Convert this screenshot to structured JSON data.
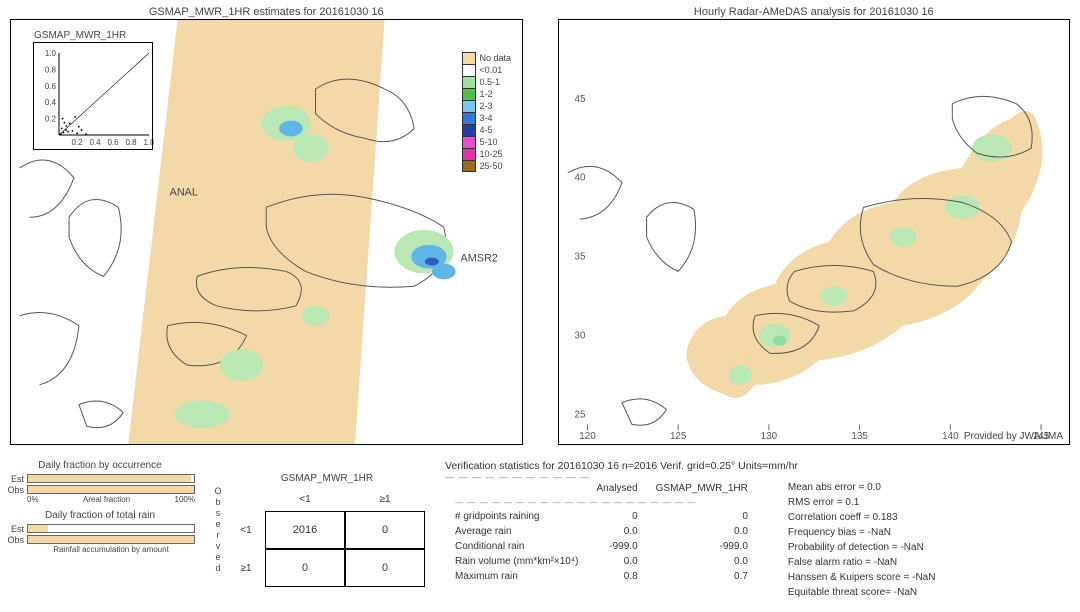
{
  "maps": {
    "left": {
      "title": "GSMAP_MWR_1HR estimates for 20161030 16",
      "swath_color": "#f3d9a8",
      "coast_color": "#555",
      "rain_color1": "#b9e8b5",
      "rain_color2": "#5fb6e6",
      "rain_color3": "#2d5fc2",
      "labels": {
        "anal": "ANAL",
        "amsr2": "AMSR2"
      },
      "inset": {
        "title": "GSMAP_MWR_1HR",
        "xlim": [
          0,
          1.0
        ],
        "ylim": [
          0,
          1.0
        ],
        "xticks": [
          "0.2",
          "0.4",
          "0.6",
          "0.8",
          "1.0"
        ],
        "yticks": [
          "0.2",
          "0.4",
          "0.6",
          "0.8",
          "1.0"
        ],
        "points": [
          [
            0.02,
            0.01
          ],
          [
            0.05,
            0.03
          ],
          [
            0.03,
            0.08
          ],
          [
            0.1,
            0.04
          ],
          [
            0.08,
            0.11
          ],
          [
            0.15,
            0.05
          ],
          [
            0.12,
            0.14
          ],
          [
            0.2,
            0.02
          ],
          [
            0.04,
            0.2
          ],
          [
            0.25,
            0.06
          ],
          [
            0.18,
            0.22
          ],
          [
            0.08,
            0.06
          ],
          [
            0.3,
            0.01
          ],
          [
            0.01,
            0.01
          ],
          [
            0.06,
            0.15
          ],
          [
            0.22,
            0.1
          ]
        ],
        "point_color": "#000"
      }
    },
    "right": {
      "title": "Hourly Radar-AMeDAS analysis for 20161030 16",
      "coverage_color": "#f3d9a8",
      "coast_color": "#555",
      "rain_color1": "#b9e8b5",
      "rain_color2": "#8fd9a6",
      "xticks": [
        "120",
        "125",
        "130",
        "135",
        "140",
        "145"
      ],
      "yticks": [
        "25",
        "30",
        "35",
        "40",
        "45"
      ],
      "tick_color": "#666",
      "attribution": "Provided by JWA/JMA"
    },
    "legend": {
      "items": [
        {
          "color": "#f3d9a8",
          "label": "No data"
        },
        {
          "color": "#ffffff",
          "label": "<0.01"
        },
        {
          "color": "#9ce29c",
          "label": "0.5-1"
        },
        {
          "color": "#4fbf4f",
          "label": "1-2"
        },
        {
          "color": "#7ac7f2",
          "label": "2-3"
        },
        {
          "color": "#2f7bdc",
          "label": "3-4"
        },
        {
          "color": "#1f3fb0",
          "label": "4-5"
        },
        {
          "color": "#e94bd1",
          "label": "5-10"
        },
        {
          "color": "#e333a8",
          "label": "10-25"
        },
        {
          "color": "#9c6a1d",
          "label": "25-50"
        }
      ]
    }
  },
  "hbars": {
    "occurrence": {
      "title": "Daily fraction by occurrence",
      "est_label": "Est",
      "est_value": 98,
      "obs_label": "Obs",
      "obs_value": 100,
      "axis_label": "Areal fraction",
      "xmin": "0%",
      "xmax": "100%",
      "fill_color": "#f3d9a8"
    },
    "totalrain": {
      "title": "Daily fraction of total rain",
      "est_label": "Est",
      "est_value": 12,
      "obs_label": "Obs",
      "obs_value": 100,
      "axis_label": "Rainfall accumulation by amount",
      "fill_color": "#f3d9a8"
    }
  },
  "ctable": {
    "title": "GSMAP_MWR_1HR",
    "vert_label": "Observed",
    "col_labels": [
      "<1",
      "≥1"
    ],
    "row_labels": [
      "<1",
      "≥1"
    ],
    "cells": [
      [
        2016,
        0
      ],
      [
        0,
        0
      ]
    ]
  },
  "stats": {
    "header": "Verification statistics for 20161030 16  n=2016  Verif. grid=0.25°  Units=mm/hr",
    "table": {
      "columns": [
        "",
        "Analysed",
        "GSMAP_MWR_1HR"
      ],
      "rows": [
        [
          "# gridpoints raining",
          "0",
          "0"
        ],
        [
          "Average rain",
          "0.0",
          "0.0"
        ],
        [
          "Conditional rain",
          "-999.0",
          "-999.0"
        ],
        [
          "Rain volume (mm*km²×10⁴)",
          "0.0",
          "0.0"
        ],
        [
          "Maximum rain",
          "0.8",
          "0.7"
        ]
      ]
    },
    "list": [
      "Mean abs error = 0.0",
      "RMS error = 0.1",
      "Correlation coeff = 0.183",
      "Frequency bias = -NaN",
      "Probability of detection = -NaN",
      "False alarm ratio = -NaN",
      "Hanssen & Kuipers score = -NaN",
      "Equitable threat score= -NaN"
    ]
  }
}
